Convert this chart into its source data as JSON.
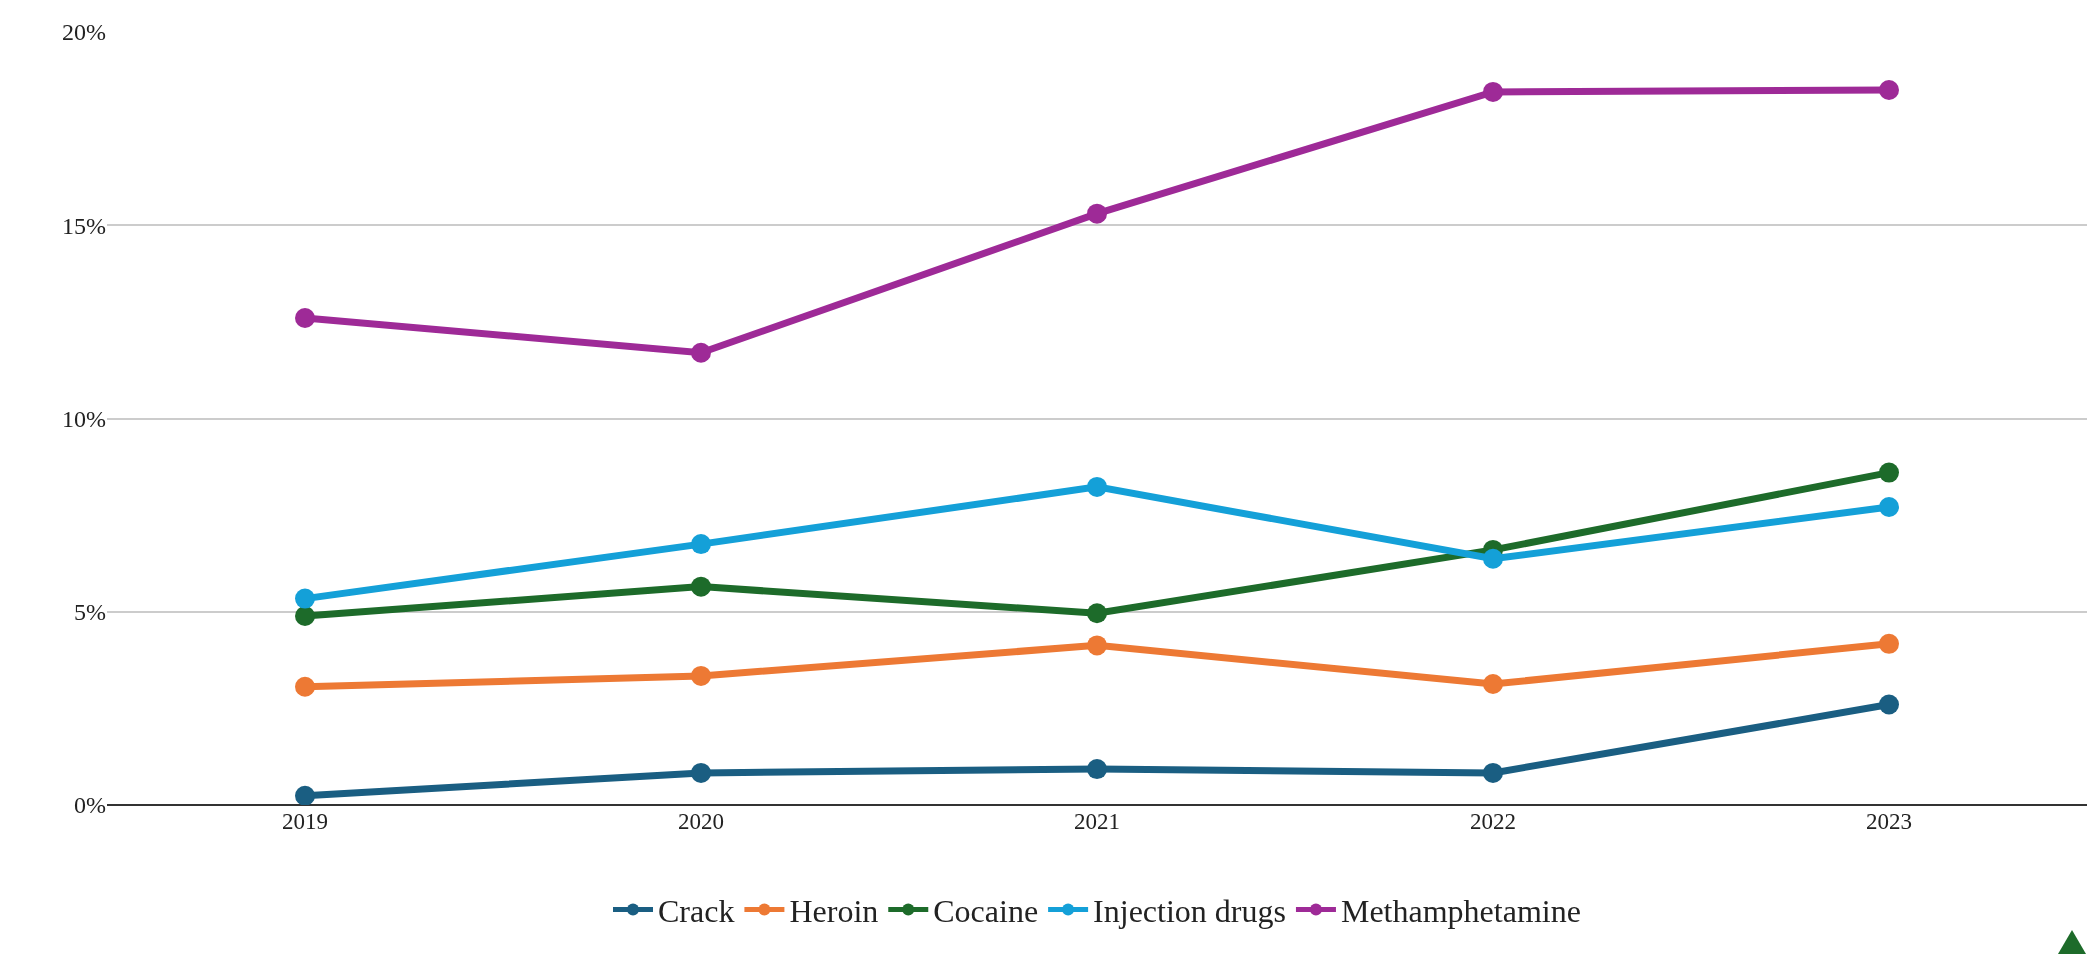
{
  "chart_data": {
    "type": "line",
    "categories": [
      "2019",
      "2020",
      "2021",
      "2022",
      "2023"
    ],
    "series": [
      {
        "name": "Crack",
        "color": "#1a5e82",
        "values": [
          0.24,
          0.83,
          0.93,
          0.83,
          2.6
        ]
      },
      {
        "name": "Heroin",
        "color": "#ed7934",
        "values": [
          3.06,
          3.34,
          4.13,
          3.13,
          4.17
        ]
      },
      {
        "name": "Cocaine",
        "color": "#1d6b2a",
        "values": [
          4.89,
          5.65,
          4.96,
          6.6,
          8.6
        ]
      },
      {
        "name": "Injection drugs",
        "color": "#14a0d8",
        "values": [
          5.34,
          6.75,
          8.23,
          6.37,
          7.71
        ]
      },
      {
        "name": "Methamphetamine",
        "color": "#9e2a97",
        "values": [
          12.6,
          11.7,
          15.3,
          18.45,
          18.5
        ]
      }
    ],
    "ylim": [
      0,
      20
    ],
    "yticks": [
      {
        "value": 0,
        "label": "0%"
      },
      {
        "value": 5,
        "label": "5%"
      },
      {
        "value": 10,
        "label": "10%"
      },
      {
        "value": 15,
        "label": "15%"
      },
      {
        "value": 20,
        "label": "20%"
      }
    ],
    "grid": "y",
    "legend": "bottom",
    "marker": "circle",
    "line_style": "solid"
  }
}
